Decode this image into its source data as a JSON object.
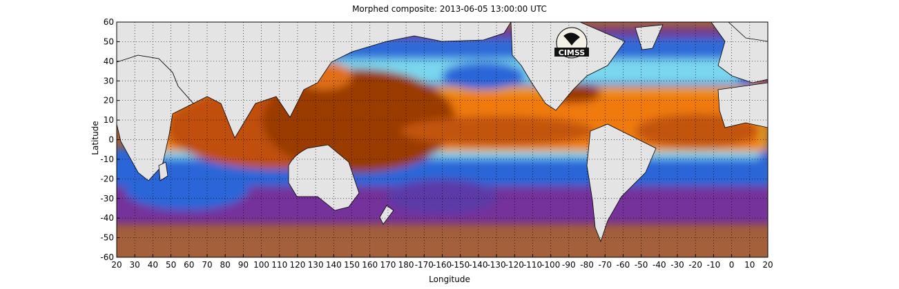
{
  "title": "Morphed composite: 2013-06-05 13:00:00 UTC",
  "x_axis_label": "Longitude",
  "y_axis_label": "Latitude",
  "x_tick_labels": [
    "20",
    "30",
    "40",
    "50",
    "60",
    "70",
    "80",
    "90",
    "100",
    "110",
    "120",
    "130",
    "140",
    "150",
    "160",
    "170",
    "180",
    "-170",
    "-160",
    "-150",
    "-140",
    "-130",
    "-120",
    "-110",
    "-100",
    "-90",
    "-80",
    "-70",
    "-60",
    "-50",
    "-40",
    "-30",
    "-20",
    "-10",
    "0",
    "10",
    "20"
  ],
  "y_tick_labels": [
    "60",
    "50",
    "40",
    "30",
    "20",
    "10",
    "0",
    "-10",
    "-20",
    "-30",
    "-40",
    "-50",
    "-60"
  ],
  "logo": {
    "text": "CIMSS",
    "icon": "cimss-logo-icon"
  },
  "colors": {
    "land": "#e4e4e4",
    "ocean_dry": "#a3603a",
    "deep_moist": "#9a3a05",
    "mid_moist": "#f07a10",
    "cyan": "#7ad6ee",
    "blue": "#2b66d8",
    "purple": "#74339a"
  },
  "chart_data": {
    "type": "heatmap",
    "title": "Morphed composite: 2013-06-05 13:00:00 UTC",
    "xlabel": "Longitude",
    "ylabel": "Latitude",
    "xlim": [
      20,
      380
    ],
    "ylim": [
      -60,
      60
    ],
    "grid": true
  }
}
